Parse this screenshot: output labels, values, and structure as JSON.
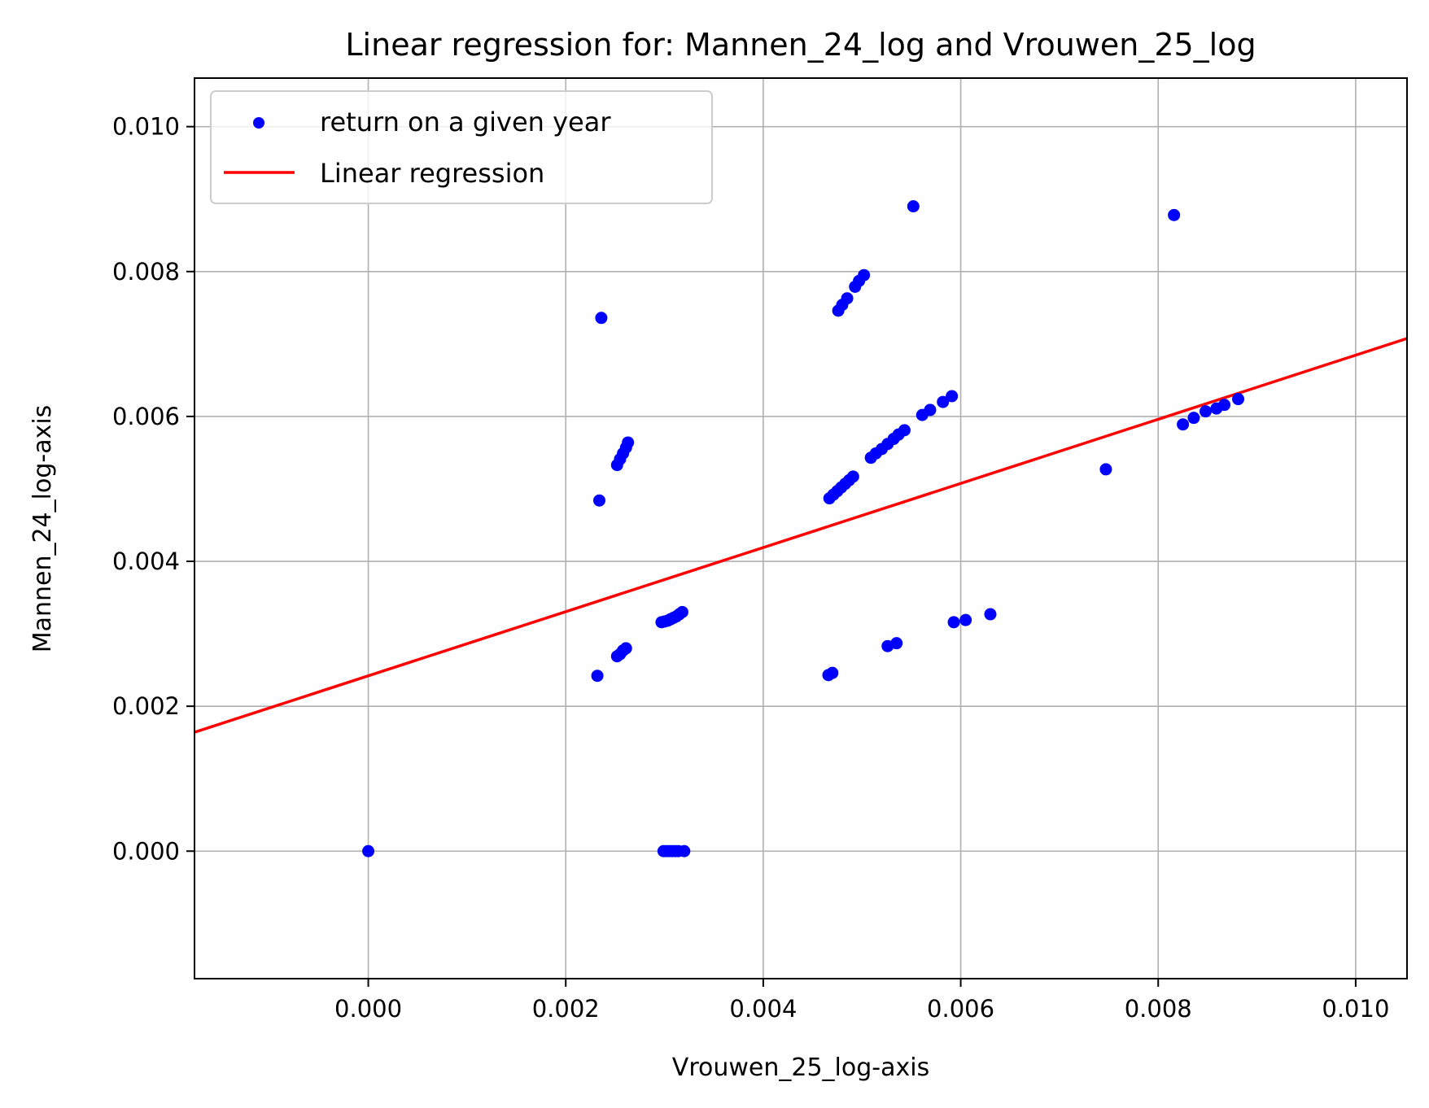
{
  "chart_data": {
    "type": "scatter",
    "title": "Linear regression for: Mannen_24_log and Vrouwen_25_log",
    "xlabel": "Vrouwen_25_log-axis",
    "ylabel": "Mannen_24_log-axis",
    "xlim": [
      -0.00176,
      0.01052
    ],
    "ylim": [
      -0.00176,
      0.01067
    ],
    "x_ticks": [
      {
        "value": 0.0,
        "label": "0.000"
      },
      {
        "value": 0.002,
        "label": "0.002"
      },
      {
        "value": 0.004,
        "label": "0.004"
      },
      {
        "value": 0.006,
        "label": "0.006"
      },
      {
        "value": 0.008,
        "label": "0.008"
      },
      {
        "value": 0.01,
        "label": "0.010"
      }
    ],
    "y_ticks": [
      {
        "value": 0.0,
        "label": "0.000"
      },
      {
        "value": 0.002,
        "label": "0.002"
      },
      {
        "value": 0.004,
        "label": "0.004"
      },
      {
        "value": 0.006,
        "label": "0.006"
      },
      {
        "value": 0.008,
        "label": "0.008"
      },
      {
        "value": 0.01,
        "label": "0.010"
      }
    ],
    "grid": true,
    "legend_position": "upper-left",
    "series": [
      {
        "name": "return on a given year",
        "kind": "scatter",
        "color": "#0000ff",
        "points": [
          [
            0.0,
            0.0
          ],
          [
            0.00299,
            0.0
          ],
          [
            0.00302,
            0.0
          ],
          [
            0.00305,
            0.0
          ],
          [
            0.00308,
            0.0
          ],
          [
            0.00311,
            0.0
          ],
          [
            0.00314,
            0.0
          ],
          [
            0.0032,
            0.0
          ],
          [
            0.00232,
            0.00242
          ],
          [
            0.00234,
            0.00484
          ],
          [
            0.00236,
            0.00736
          ],
          [
            0.00252,
            0.00269
          ],
          [
            0.00255,
            0.00272
          ],
          [
            0.00258,
            0.00277
          ],
          [
            0.00261,
            0.0028
          ],
          [
            0.00252,
            0.00533
          ],
          [
            0.00255,
            0.00541
          ],
          [
            0.00258,
            0.00549
          ],
          [
            0.00261,
            0.00557
          ],
          [
            0.00263,
            0.00564
          ],
          [
            0.00297,
            0.00316
          ],
          [
            0.003,
            0.00317
          ],
          [
            0.00303,
            0.00318
          ],
          [
            0.00306,
            0.0032
          ],
          [
            0.00309,
            0.00322
          ],
          [
            0.00312,
            0.00324
          ],
          [
            0.00315,
            0.00327
          ],
          [
            0.00318,
            0.0033
          ],
          [
            0.00466,
            0.00243
          ],
          [
            0.0047,
            0.00246
          ],
          [
            0.00526,
            0.00283
          ],
          [
            0.00535,
            0.00287
          ],
          [
            0.00593,
            0.00316
          ],
          [
            0.00605,
            0.00319
          ],
          [
            0.0063,
            0.00327
          ],
          [
            0.00467,
            0.00487
          ],
          [
            0.00471,
            0.00492
          ],
          [
            0.00475,
            0.00497
          ],
          [
            0.00479,
            0.00502
          ],
          [
            0.00483,
            0.00507
          ],
          [
            0.00487,
            0.00512
          ],
          [
            0.00491,
            0.00517
          ],
          [
            0.00509,
            0.00543
          ],
          [
            0.00514,
            0.00549
          ],
          [
            0.0052,
            0.00555
          ],
          [
            0.00526,
            0.00562
          ],
          [
            0.00532,
            0.00569
          ],
          [
            0.00537,
            0.00575
          ],
          [
            0.00543,
            0.00581
          ],
          [
            0.00561,
            0.00602
          ],
          [
            0.00569,
            0.00609
          ],
          [
            0.00582,
            0.0062
          ],
          [
            0.00591,
            0.00628
          ],
          [
            0.00476,
            0.00746
          ],
          [
            0.0048,
            0.00754
          ],
          [
            0.00485,
            0.00763
          ],
          [
            0.00493,
            0.00779
          ],
          [
            0.00497,
            0.00787
          ],
          [
            0.00502,
            0.00795
          ],
          [
            0.00552,
            0.0089
          ],
          [
            0.00747,
            0.00527
          ],
          [
            0.00816,
            0.00878
          ],
          [
            0.00825,
            0.00589
          ],
          [
            0.00836,
            0.00598
          ],
          [
            0.00848,
            0.00607
          ],
          [
            0.00859,
            0.00611
          ],
          [
            0.00867,
            0.00616
          ],
          [
            0.00881,
            0.00624
          ]
        ]
      },
      {
        "name": "Linear regression",
        "kind": "line",
        "color": "#ff0000",
        "intercept": 0.00242,
        "slope": 0.4426
      }
    ]
  }
}
